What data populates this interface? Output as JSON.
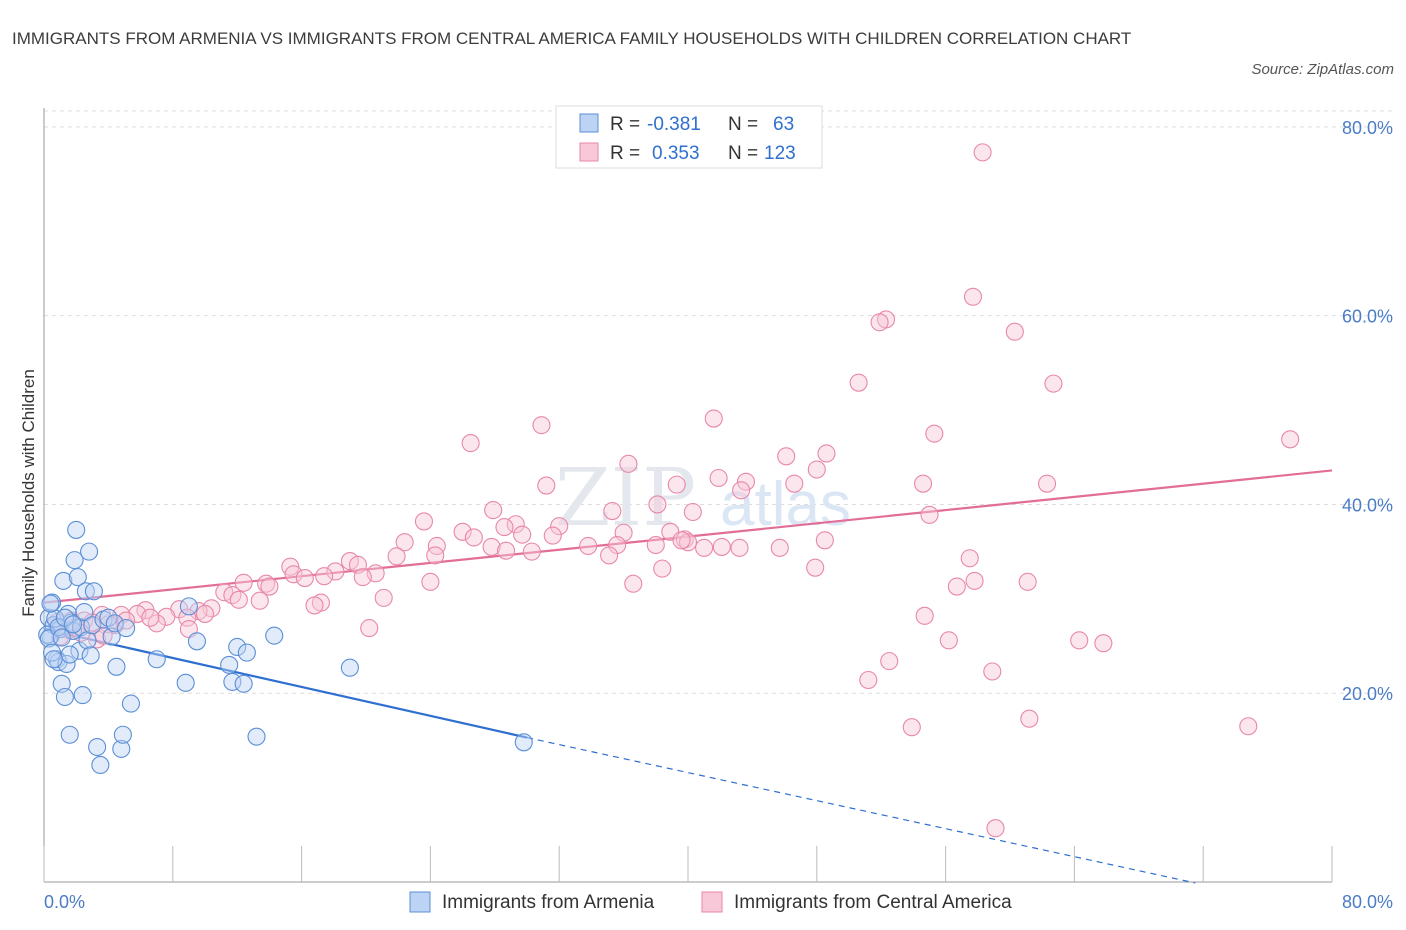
{
  "header": {
    "title": "IMMIGRANTS FROM ARMENIA VS IMMIGRANTS FROM CENTRAL AMERICA FAMILY HOUSEHOLDS WITH CHILDREN CORRELATION CHART",
    "source": "Source: ZipAtlas.com"
  },
  "watermark": {
    "zip": "ZIP",
    "atlas": "atlas"
  },
  "colors": {
    "armenia": "#5b8fd6",
    "armenia_fill": "#bcd3f3",
    "armenia_line": "#2f6fcf",
    "central_america": "#e888a8",
    "central_america_fill": "#f8c8d8",
    "central_america_line": "#e26d96",
    "axis_label": "#4a7cc7",
    "grid": "#dddddd"
  },
  "legend_top": {
    "rows": [
      {
        "r_label": "R =",
        "r_value": "-0.381",
        "n_label": "N =",
        "n_value": "63"
      },
      {
        "r_label": "R =",
        "r_value": "0.353",
        "n_label": "N =",
        "n_value": "123"
      }
    ]
  },
  "chart_data": {
    "type": "scatter",
    "title": "IMMIGRANTS FROM ARMENIA VS IMMIGRANTS FROM CENTRAL AMERICA FAMILY HOUSEHOLDS WITH CHILDREN CORRELATION CHART",
    "xlabel": "",
    "ylabel": "Family Households with Children",
    "xlim": [
      0,
      80
    ],
    "ylim": [
      0,
      82
    ],
    "x_tick_labels": [
      "0.0%",
      "80.0%"
    ],
    "y_ticks": [
      20,
      40,
      60,
      80
    ],
    "y_tick_labels": [
      "20.0%",
      "40.0%",
      "60.0%",
      "80.0%"
    ],
    "grid": true,
    "legend_position": "bottom-center",
    "series": [
      {
        "name": "Immigrants from Armenia",
        "r": -0.381,
        "n": 63,
        "trend": {
          "x0": 0,
          "y0": 26.8,
          "x1": 30,
          "y1": 15.3,
          "dashed_to_x": 71.5,
          "dashed_to_y": -0.1
        },
        "points": [
          [
            0.3,
            28.0
          ],
          [
            0.4,
            26.0
          ],
          [
            0.5,
            29.6
          ],
          [
            0.6,
            27.2
          ],
          [
            0.8,
            23.6
          ],
          [
            0.9,
            23.3
          ],
          [
            1.0,
            26.8
          ],
          [
            1.1,
            21.0
          ],
          [
            1.2,
            31.9
          ],
          [
            1.3,
            19.6
          ],
          [
            1.4,
            23.1
          ],
          [
            1.5,
            28.4
          ],
          [
            1.6,
            15.6
          ],
          [
            1.7,
            27.5
          ],
          [
            1.8,
            26.6
          ],
          [
            1.9,
            34.1
          ],
          [
            2.0,
            37.3
          ],
          [
            2.1,
            32.3
          ],
          [
            2.2,
            24.5
          ],
          [
            2.3,
            27.0
          ],
          [
            2.4,
            19.8
          ],
          [
            2.5,
            28.6
          ],
          [
            2.6,
            30.8
          ],
          [
            2.7,
            25.6
          ],
          [
            2.8,
            35.0
          ],
          [
            2.9,
            24.0
          ],
          [
            3.0,
            27.2
          ],
          [
            3.1,
            30.8
          ],
          [
            3.3,
            14.3
          ],
          [
            3.5,
            12.4
          ],
          [
            3.7,
            27.8
          ],
          [
            4.0,
            28.0
          ],
          [
            4.2,
            26.0
          ],
          [
            4.4,
            27.4
          ],
          [
            4.5,
            22.8
          ],
          [
            4.8,
            14.1
          ],
          [
            4.9,
            15.6
          ],
          [
            5.1,
            26.9
          ],
          [
            5.4,
            18.9
          ],
          [
            7.0,
            23.6
          ],
          [
            8.8,
            21.1
          ],
          [
            9.0,
            29.2
          ],
          [
            9.5,
            25.5
          ],
          [
            11.5,
            23.0
          ],
          [
            11.7,
            21.2
          ],
          [
            12.0,
            24.9
          ],
          [
            12.4,
            21.0
          ],
          [
            12.6,
            24.3
          ],
          [
            13.2,
            15.4
          ],
          [
            14.3,
            26.1
          ],
          [
            19.0,
            22.7
          ],
          [
            29.8,
            14.8
          ],
          [
            0.2,
            26.2
          ],
          [
            0.3,
            25.8
          ],
          [
            0.5,
            24.3
          ],
          [
            0.7,
            27.9
          ],
          [
            0.9,
            27.0
          ],
          [
            1.1,
            25.9
          ],
          [
            1.3,
            28.0
          ],
          [
            1.6,
            24.1
          ],
          [
            1.8,
            27.3
          ],
          [
            0.4,
            29.5
          ],
          [
            0.6,
            23.6
          ]
        ]
      },
      {
        "name": "Immigrants from Central America",
        "r": 0.353,
        "n": 123,
        "trend": {
          "x0": 0,
          "y0": 29.6,
          "x1": 80,
          "y1": 43.6
        },
        "points": [
          [
            58.3,
            77.3
          ],
          [
            57.7,
            62.0
          ],
          [
            52.3,
            59.6
          ],
          [
            51.9,
            59.3
          ],
          [
            60.3,
            58.3
          ],
          [
            50.6,
            52.9
          ],
          [
            62.7,
            52.8
          ],
          [
            41.6,
            49.1
          ],
          [
            30.9,
            48.4
          ],
          [
            26.5,
            46.5
          ],
          [
            77.4,
            46.9
          ],
          [
            55.3,
            47.5
          ],
          [
            46.1,
            45.1
          ],
          [
            48.6,
            45.4
          ],
          [
            36.3,
            44.3
          ],
          [
            48.0,
            43.7
          ],
          [
            41.9,
            42.8
          ],
          [
            43.6,
            42.4
          ],
          [
            46.6,
            42.2
          ],
          [
            39.3,
            42.1
          ],
          [
            62.3,
            42.2
          ],
          [
            31.2,
            42.0
          ],
          [
            43.3,
            41.5
          ],
          [
            54.6,
            42.2
          ],
          [
            27.9,
            39.4
          ],
          [
            35.3,
            39.3
          ],
          [
            38.1,
            40.0
          ],
          [
            40.3,
            39.2
          ],
          [
            55.0,
            38.9
          ],
          [
            23.6,
            38.2
          ],
          [
            29.3,
            37.9
          ],
          [
            32.0,
            37.7
          ],
          [
            28.6,
            37.6
          ],
          [
            31.6,
            36.7
          ],
          [
            36.0,
            37.0
          ],
          [
            29.7,
            36.8
          ],
          [
            38.9,
            37.1
          ],
          [
            39.8,
            36.3
          ],
          [
            48.5,
            36.2
          ],
          [
            40.0,
            36.0
          ],
          [
            26.0,
            37.1
          ],
          [
            26.7,
            36.5
          ],
          [
            22.4,
            36.0
          ],
          [
            24.4,
            35.6
          ],
          [
            33.8,
            35.6
          ],
          [
            35.6,
            35.7
          ],
          [
            38.0,
            35.7
          ],
          [
            39.6,
            36.2
          ],
          [
            42.1,
            35.5
          ],
          [
            43.2,
            35.4
          ],
          [
            45.7,
            35.4
          ],
          [
            41.0,
            35.4
          ],
          [
            27.8,
            35.5
          ],
          [
            28.7,
            35.1
          ],
          [
            30.3,
            35.0
          ],
          [
            21.9,
            34.5
          ],
          [
            24.3,
            34.6
          ],
          [
            19.0,
            34.0
          ],
          [
            35.1,
            34.6
          ],
          [
            19.5,
            33.6
          ],
          [
            15.3,
            33.4
          ],
          [
            18.1,
            32.9
          ],
          [
            15.5,
            32.6
          ],
          [
            17.4,
            32.4
          ],
          [
            16.2,
            32.2
          ],
          [
            20.6,
            32.7
          ],
          [
            19.8,
            32.3
          ],
          [
            36.6,
            31.6
          ],
          [
            24.0,
            31.8
          ],
          [
            13.8,
            31.6
          ],
          [
            12.4,
            31.7
          ],
          [
            14.0,
            31.3
          ],
          [
            61.1,
            31.8
          ],
          [
            11.2,
            30.7
          ],
          [
            11.7,
            30.4
          ],
          [
            12.1,
            29.9
          ],
          [
            13.4,
            29.8
          ],
          [
            21.1,
            30.1
          ],
          [
            17.2,
            29.6
          ],
          [
            16.8,
            29.3
          ],
          [
            10.4,
            29.0
          ],
          [
            8.4,
            28.9
          ],
          [
            6.3,
            28.8
          ],
          [
            9.6,
            28.7
          ],
          [
            5.8,
            28.4
          ],
          [
            4.8,
            28.3
          ],
          [
            3.6,
            28.3
          ],
          [
            2.5,
            27.7
          ],
          [
            3.0,
            27.5
          ],
          [
            1.7,
            27.7
          ],
          [
            2.0,
            27.0
          ],
          [
            1.5,
            26.7
          ],
          [
            7.6,
            28.1
          ],
          [
            8.9,
            28.0
          ],
          [
            7.0,
            27.4
          ],
          [
            4.4,
            27.2
          ],
          [
            5.1,
            27.7
          ],
          [
            1.0,
            26.0
          ],
          [
            3.3,
            25.7
          ],
          [
            9.0,
            26.8
          ],
          [
            20.2,
            26.9
          ],
          [
            54.7,
            28.2
          ],
          [
            56.2,
            25.6
          ],
          [
            64.3,
            25.6
          ],
          [
            65.8,
            25.3
          ],
          [
            52.5,
            23.4
          ],
          [
            58.9,
            22.3
          ],
          [
            51.2,
            21.4
          ],
          [
            61.2,
            17.3
          ],
          [
            53.9,
            16.4
          ],
          [
            74.8,
            16.5
          ],
          [
            56.7,
            31.3
          ],
          [
            57.5,
            34.3
          ],
          [
            57.8,
            31.9
          ],
          [
            47.9,
            33.3
          ],
          [
            38.4,
            33.2
          ],
          [
            59.1,
            5.7
          ],
          [
            4.0,
            27.3
          ],
          [
            6.6,
            28.0
          ],
          [
            10.0,
            28.4
          ],
          [
            0.8,
            27.5
          ],
          [
            2.3,
            26.4
          ],
          [
            3.7,
            26.1
          ]
        ]
      }
    ]
  },
  "legend_bottom": {
    "items": [
      {
        "label": "Immigrants from Armenia"
      },
      {
        "label": "Immigrants from Central America"
      }
    ]
  }
}
